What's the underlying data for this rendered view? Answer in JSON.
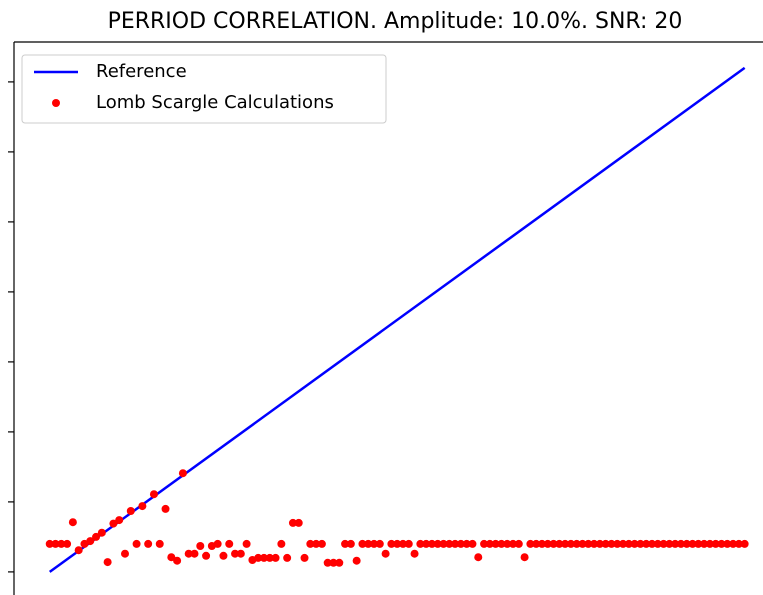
{
  "chart_data": {
    "type": "scatter",
    "title": "PERRIOD CORRELATION. Amplitude: 10.0%. SNR: 20",
    "xlim": [
      -0.37,
      7.39
    ],
    "ylim": [
      -0.33,
      7.57
    ],
    "yticks": [
      0,
      1,
      2,
      3,
      4,
      5,
      6,
      7
    ],
    "legend": "upper left",
    "series": [
      {
        "name": "Reference",
        "color": "#0000ff",
        "style": "line",
        "x": [
          0,
          7.2
        ],
        "values": [
          0,
          7.2
        ]
      },
      {
        "name": "Lomb Scargle Calculations",
        "color": "#ff0000",
        "style": "marker",
        "x": [
          0,
          0.06,
          0.12,
          0.18,
          0.24,
          0.3,
          0.36,
          0.42,
          0.48,
          0.54,
          0.6,
          0.66,
          0.72,
          0.78,
          0.84,
          0.9,
          0.96,
          1.02,
          1.08,
          1.14,
          1.2,
          1.26,
          1.32,
          1.38,
          1.44,
          1.5,
          1.56,
          1.62,
          1.68,
          1.74,
          1.8,
          1.86,
          1.92,
          1.98,
          2.04,
          2.1,
          2.16,
          2.22,
          2.28,
          2.34,
          2.4,
          2.46,
          2.52,
          2.58,
          2.64,
          2.7,
          2.76,
          2.82,
          2.88,
          2.94,
          3,
          3.06,
          3.12,
          3.18,
          3.24,
          3.3,
          3.36,
          3.42,
          3.48,
          3.54,
          3.6,
          3.66,
          3.72,
          3.78,
          3.84,
          3.9,
          3.96,
          4.02,
          4.08,
          4.14,
          4.2,
          4.26,
          4.32,
          4.38,
          4.44,
          4.5,
          4.56,
          4.62,
          4.68,
          4.74,
          4.8,
          4.86,
          4.92,
          4.98,
          5.04,
          5.1,
          5.16,
          5.22,
          5.28,
          5.34,
          5.4,
          5.46,
          5.52,
          5.58,
          5.64,
          5.7,
          5.76,
          5.82,
          5.88,
          5.94,
          6,
          6.06,
          6.12,
          6.18,
          6.24,
          6.3,
          6.36,
          6.42,
          6.48,
          6.54,
          6.6,
          6.66,
          6.72,
          6.78,
          6.84,
          6.9,
          6.96,
          7.02,
          7.08,
          7.14,
          7.2
        ],
        "values": [
          0.4,
          0.4,
          0.4,
          0.4,
          0.71,
          0.31,
          0.4,
          0.44,
          0.5,
          0.56,
          0.14,
          0.69,
          0.74,
          0.26,
          0.87,
          0.4,
          0.94,
          0.4,
          1.11,
          0.4,
          0.9,
          0.21,
          0.16,
          1.41,
          0.26,
          0.26,
          0.37,
          0.23,
          0.37,
          0.4,
          0.23,
          0.4,
          0.26,
          0.26,
          0.4,
          0.17,
          0.2,
          0.2,
          0.2,
          0.2,
          0.4,
          0.2,
          0.7,
          0.7,
          0.2,
          0.4,
          0.4,
          0.4,
          0.13,
          0.13,
          0.13,
          0.4,
          0.4,
          0.16,
          0.4,
          0.4,
          0.4,
          0.4,
          0.26,
          0.4,
          0.4,
          0.4,
          0.4,
          0.26,
          0.4,
          0.4,
          0.4,
          0.4,
          0.4,
          0.4,
          0.4,
          0.4,
          0.4,
          0.4,
          0.21,
          0.4,
          0.4,
          0.4,
          0.4,
          0.4,
          0.4,
          0.4,
          0.21,
          0.4,
          0.4,
          0.4,
          0.4,
          0.4,
          0.4,
          0.4,
          0.4,
          0.4,
          0.4,
          0.4,
          0.4,
          0.4,
          0.4,
          0.4,
          0.4,
          0.4,
          0.4,
          0.4,
          0.4,
          0.4,
          0.4,
          0.4,
          0.4,
          0.4,
          0.4,
          0.4,
          0.4,
          0.4,
          0.4,
          0.4,
          0.4,
          0.4,
          0.4,
          0.4,
          0.4,
          0.4,
          0.4
        ]
      }
    ]
  }
}
